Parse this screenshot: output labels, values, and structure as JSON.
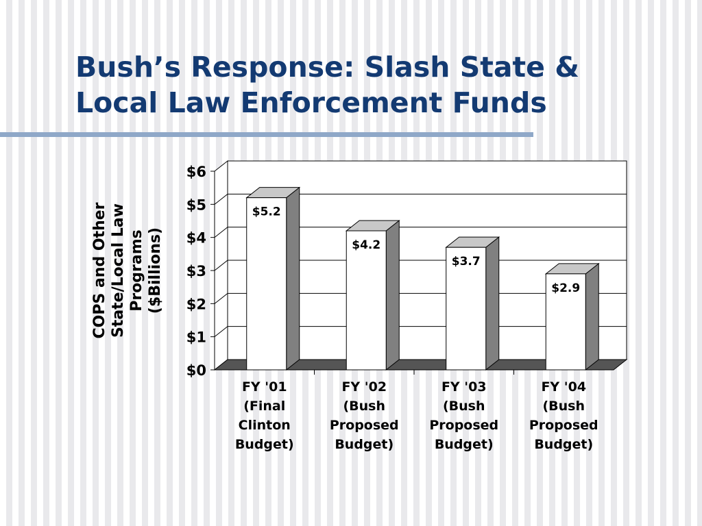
{
  "slide": {
    "title_line1": "Bush’s Response: Slash State &",
    "title_line2": "Local Law Enforcement Funds"
  },
  "chart_data": {
    "type": "bar",
    "categories": [
      [
        "FY '01",
        "(Final",
        "Clinton",
        "Budget)"
      ],
      [
        "FY '02",
        "(Bush",
        "Proposed",
        "Budget)"
      ],
      [
        "FY '03",
        "(Bush",
        "Proposed",
        "Budget)"
      ],
      [
        "FY '04",
        "(Bush",
        "Proposed",
        "Budget)"
      ]
    ],
    "values": [
      5.2,
      4.2,
      3.7,
      2.9
    ],
    "data_labels": [
      "$5.2",
      "$4.2",
      "$3.7",
      "$2.9"
    ],
    "ylabel": [
      "COPS and Other",
      "State/Local Law",
      "Programs",
      "($Billions)"
    ],
    "ylim": [
      0,
      6
    ],
    "yticks": [
      0,
      1,
      2,
      3,
      4,
      5,
      6
    ],
    "ytick_labels": [
      "$0",
      "$1",
      "$2",
      "$3",
      "$4",
      "$5",
      "$6"
    ],
    "grid": true,
    "legend": "none",
    "style": "3d-column",
    "colors": {
      "bar_front": "#ffffff",
      "bar_top": "#c8c8c8",
      "bar_side": "#808080",
      "floor": "#555555",
      "gridline": "#000000"
    }
  }
}
